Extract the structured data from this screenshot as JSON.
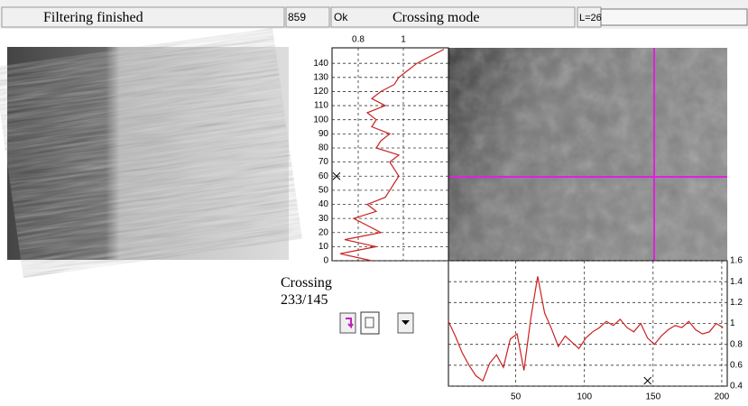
{
  "status_bar": {
    "message": "Filtering finished",
    "count": "859",
    "state": "Ok",
    "mode": "Crossing mode",
    "length": "L=26"
  },
  "vertical_profile": {
    "xlim": [
      0.684,
      1.2
    ],
    "xticks": [
      0.8,
      1
    ],
    "ylim": [
      0,
      151
    ],
    "yticks": [
      0,
      10,
      20,
      30,
      40,
      50,
      60,
      70,
      80,
      90,
      100,
      110,
      120,
      130,
      140
    ],
    "positions": [
      0,
      5,
      10,
      15,
      20,
      25,
      30,
      35,
      40,
      45,
      50,
      55,
      60,
      65,
      70,
      75,
      80,
      85,
      90,
      95,
      100,
      105,
      110,
      115,
      120,
      125,
      130,
      135,
      140,
      145,
      150
    ],
    "values": [
      0.86,
      0.72,
      0.88,
      0.74,
      0.9,
      0.84,
      0.78,
      0.88,
      0.84,
      0.92,
      0.94,
      0.96,
      0.98,
      0.96,
      0.94,
      0.98,
      0.88,
      0.9,
      0.94,
      0.86,
      0.88,
      0.84,
      0.92,
      0.86,
      0.9,
      0.96,
      0.98,
      1.02,
      1.06,
      1.12,
      1.18
    ],
    "color": "#cc2020",
    "marker_y": 60
  },
  "crossing": {
    "label": "Crossing",
    "position": "233/145"
  },
  "horizontal_profile": {
    "xlim": [
      1,
      204
    ],
    "xticks": [
      50,
      100,
      150,
      200
    ],
    "ylim": [
      0.4,
      1.6
    ],
    "yticks": [
      0.4,
      0.6,
      0.8,
      1,
      1.2,
      1.4,
      1.6
    ],
    "positions": [
      1,
      6,
      11,
      16,
      21,
      26,
      31,
      36,
      41,
      46,
      51,
      56,
      61,
      66,
      71,
      76,
      81,
      86,
      91,
      96,
      101,
      106,
      111,
      116,
      121,
      126,
      131,
      136,
      141,
      146,
      151,
      156,
      161,
      166,
      171,
      176,
      181,
      186,
      191,
      196,
      201
    ],
    "values": [
      1.02,
      0.88,
      0.72,
      0.6,
      0.5,
      0.45,
      0.62,
      0.7,
      0.58,
      0.85,
      0.9,
      0.55,
      1.05,
      1.45,
      1.1,
      0.95,
      0.78,
      0.88,
      0.82,
      0.76,
      0.86,
      0.92,
      0.96,
      1.02,
      0.98,
      1.04,
      0.96,
      0.92,
      1.0,
      0.86,
      0.8,
      0.88,
      0.94,
      0.98,
      0.96,
      1.02,
      0.94,
      0.9,
      0.92,
      1.0,
      0.96
    ],
    "color": "#cc2020",
    "marker_x": 146
  }
}
